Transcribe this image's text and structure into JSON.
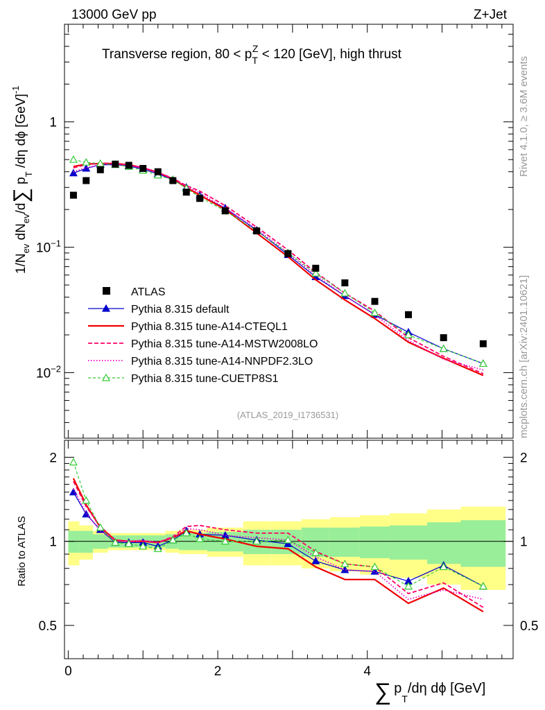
{
  "header": {
    "left": "13000 GeV pp",
    "right": "Z+Jet"
  },
  "side_labels": {
    "rivet": "Rivet 4.1.0, ≥ 3.6M events",
    "mcplots": "mcplots.cern.ch [arXiv:2401.10621]"
  },
  "chart_data": {
    "type": "line",
    "title": "Transverse region, 80 < p",
    "title_sup": "Z",
    "title_sub": "T",
    "title_rest": " < 120 [GeV], high thrust",
    "analysis_tag": "(ATLAS_2019_I1736531)",
    "ylabel": "1/N",
    "ylabel_sub1": "ev",
    "ylabel_mid": " dN",
    "ylabel_sub2": "ev",
    "ylabel_mid2": "/d",
    "ylabel_sum": "∑",
    "ylabel_p": " p",
    "ylabel_sub3": "T",
    "ylabel_end": " /dη dϕ  [GeV]",
    "ylabel_sup": "-1",
    "xlabel_sum": "∑",
    "xlabel_p": "p",
    "xlabel_sub": "T",
    "xlabel_rest": "/dη dϕ [GeV]",
    "ratio_ylabel": "Ratio to ATLAS",
    "xlim": [
      -0.05,
      5.95
    ],
    "ylim": [
      0.003,
      6.0
    ],
    "ratio_ylim": [
      0.38,
      2.3
    ],
    "x_ticks": [
      "0",
      "2",
      "4"
    ],
    "x_tick_values": [
      0,
      2,
      4
    ],
    "y_ticks": [
      {
        "value": 1,
        "base": "1",
        "exp": ""
      },
      {
        "value": 0.1,
        "base": "10",
        "exp": "−1"
      },
      {
        "value": 0.01,
        "base": "10",
        "exp": "−2"
      }
    ],
    "ratio_ticks": [
      {
        "value": 2,
        "label": "2"
      },
      {
        "value": 1,
        "label": "1"
      },
      {
        "value": 0.5,
        "label": "0.5"
      }
    ],
    "x": [
      0.07,
      0.24,
      0.43,
      0.63,
      0.81,
      1.0,
      1.2,
      1.4,
      1.58,
      1.76,
      2.1,
      2.52,
      2.94,
      3.31,
      3.7,
      4.1,
      4.55,
      5.02,
      5.55
    ],
    "bin_edges": [
      0.0,
      0.15,
      0.33,
      0.53,
      0.72,
      0.9,
      1.1,
      1.3,
      1.48,
      1.67,
      1.86,
      2.34,
      2.72,
      3.12,
      3.5,
      3.9,
      4.3,
      4.8,
      5.25,
      5.85
    ],
    "data": {
      "name": "ATLAS",
      "values": [
        0.26,
        0.34,
        0.415,
        0.46,
        0.45,
        0.425,
        0.4,
        0.34,
        0.275,
        0.245,
        0.195,
        0.135,
        0.089,
        0.068,
        0.052,
        0.037,
        0.029,
        0.019,
        0.017
      ],
      "band_inner": [
        0.09,
        0.09,
        0.06,
        0.05,
        0.05,
        0.05,
        0.05,
        0.06,
        0.07,
        0.07,
        0.08,
        0.1,
        0.1,
        0.12,
        0.12,
        0.13,
        0.14,
        0.17,
        0.19
      ],
      "band_outer": [
        0.18,
        0.14,
        0.09,
        0.07,
        0.07,
        0.07,
        0.07,
        0.09,
        0.1,
        0.1,
        0.12,
        0.18,
        0.18,
        0.2,
        0.22,
        0.24,
        0.26,
        0.3,
        0.33
      ]
    },
    "series": [
      {
        "name": "Pythia 8.315 default",
        "color": "#0000cc",
        "dash": "",
        "marker": "triangle-filled",
        "width": 1.2,
        "values": [
          0.39,
          0.425,
          0.455,
          0.455,
          0.445,
          0.42,
          0.385,
          0.345,
          0.3,
          0.26,
          0.205,
          0.137,
          0.087,
          0.058,
          0.041,
          0.029,
          0.021,
          0.0155,
          0.0118
        ]
      },
      {
        "name": "Pythia 8.315 tune-A14-CTEQL1",
        "color": "#ee0000",
        "dash": "",
        "marker": "none",
        "width": 2.2,
        "values": [
          0.44,
          0.46,
          0.465,
          0.465,
          0.455,
          0.43,
          0.395,
          0.35,
          0.3,
          0.26,
          0.2,
          0.13,
          0.084,
          0.055,
          0.038,
          0.027,
          0.0175,
          0.013,
          0.0095
        ]
      },
      {
        "name": "Pythia 8.315 tune-A14-MSTW2008LO",
        "color": "#ff0066",
        "dash": "6,3",
        "marker": "none",
        "width": 1.8,
        "values": [
          0.43,
          0.455,
          0.47,
          0.465,
          0.455,
          0.43,
          0.395,
          0.355,
          0.31,
          0.28,
          0.215,
          0.145,
          0.095,
          0.063,
          0.043,
          0.031,
          0.019,
          0.0135,
          0.0098
        ]
      },
      {
        "name": "Pythia 8.315 tune-A14-NNPDF2.3LO",
        "color": "#ee00cc",
        "dash": "1.5,2.5",
        "marker": "none",
        "width": 1.8,
        "values": [
          0.4,
          0.43,
          0.455,
          0.46,
          0.45,
          0.43,
          0.395,
          0.35,
          0.305,
          0.27,
          0.205,
          0.14,
          0.09,
          0.06,
          0.041,
          0.029,
          0.018,
          0.0128,
          0.0105
        ]
      },
      {
        "name": "Pythia 8.315 tune-CUETP8S1",
        "color": "#33cc33",
        "dash": "4,3",
        "marker": "triangle-open",
        "width": 1.2,
        "values": [
          0.5,
          0.475,
          0.465,
          0.455,
          0.44,
          0.41,
          0.375,
          0.345,
          0.295,
          0.25,
          0.195,
          0.135,
          0.09,
          0.062,
          0.043,
          0.03,
          0.02,
          0.0155,
          0.0118
        ]
      }
    ],
    "ratios": [
      [
        1.5,
        1.25,
        1.1,
        0.99,
        0.99,
        0.99,
        0.96,
        1.01,
        1.09,
        1.06,
        1.05,
        1.01,
        0.98,
        0.85,
        0.79,
        0.78,
        0.72,
        0.82,
        0.69
      ],
      [
        1.68,
        1.35,
        1.12,
        1.01,
        1.0,
        1.0,
        0.99,
        1.03,
        1.09,
        1.06,
        1.02,
        0.96,
        0.94,
        0.81,
        0.73,
        0.73,
        0.6,
        0.68,
        0.56
      ],
      [
        1.64,
        1.33,
        1.13,
        1.01,
        1.0,
        1.0,
        0.99,
        1.04,
        1.13,
        1.14,
        1.1,
        1.07,
        1.07,
        0.92,
        0.83,
        0.81,
        0.65,
        0.71,
        0.58
      ],
      [
        1.54,
        1.26,
        1.09,
        1.0,
        1.0,
        1.01,
        0.99,
        1.03,
        1.11,
        1.1,
        1.05,
        1.03,
        1.01,
        0.88,
        0.79,
        0.78,
        0.62,
        0.67,
        0.62
      ],
      [
        1.92,
        1.4,
        1.12,
        0.99,
        0.98,
        0.96,
        0.94,
        1.01,
        1.07,
        1.02,
        1.0,
        1.0,
        1.01,
        0.91,
        0.83,
        0.81,
        0.69,
        0.81,
        0.69
      ]
    ]
  }
}
